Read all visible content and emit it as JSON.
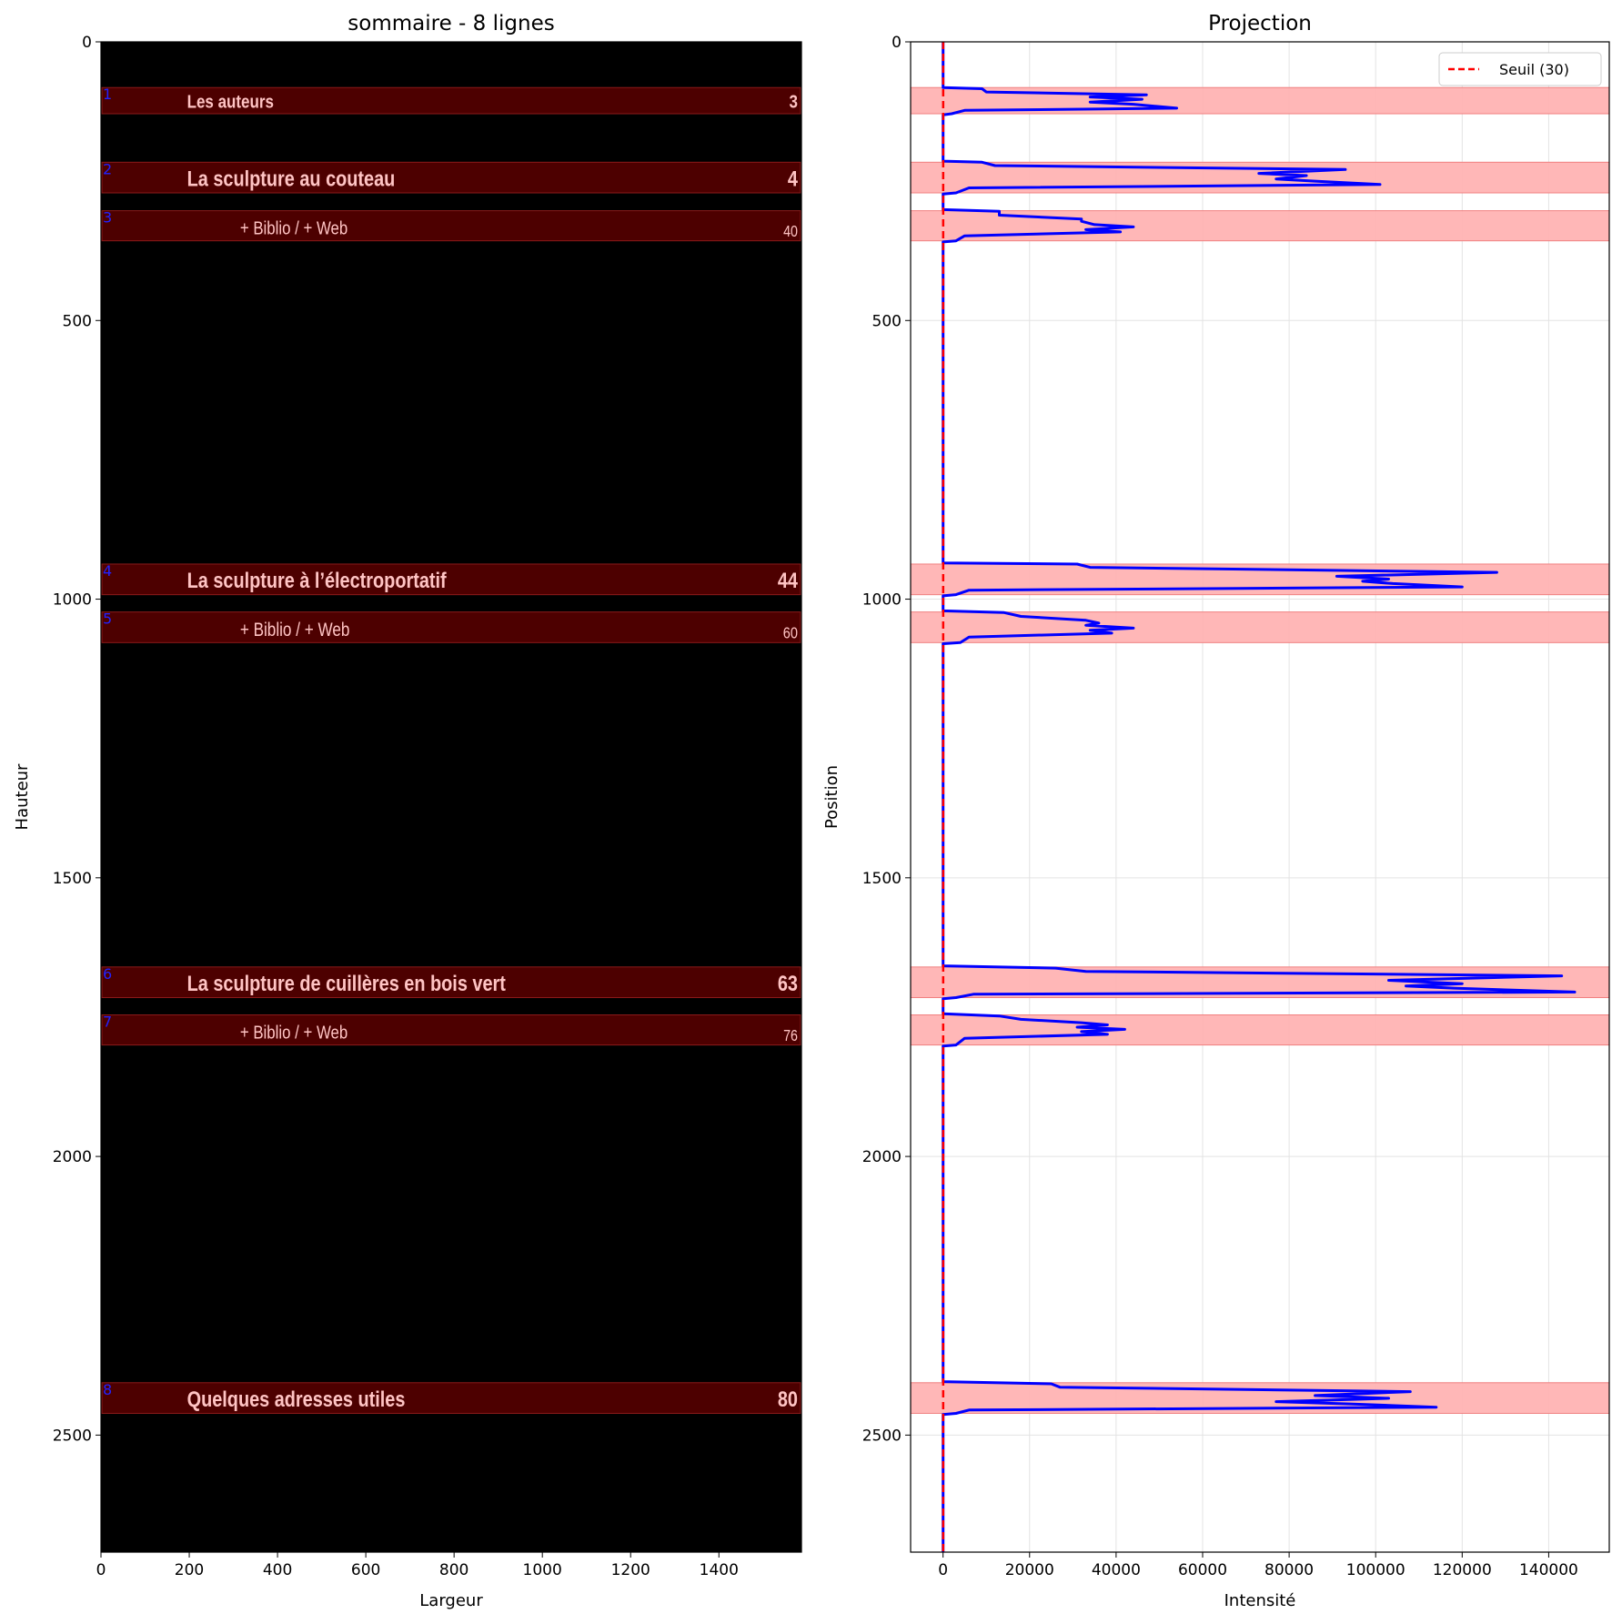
{
  "chart_data": [
    {
      "type": "image",
      "title": "sommaire - 8 lignes",
      "xlabel": "Largeur",
      "ylabel": "Hauteur",
      "xlim": [
        0,
        1587
      ],
      "ylim": [
        2710,
        0
      ],
      "xticks": [
        "0",
        "200",
        "400",
        "600",
        "800",
        "1000",
        "1200",
        "1400"
      ],
      "yticks": [
        "0",
        "500",
        "1000",
        "1500",
        "2000",
        "2500"
      ],
      "background": "#000000",
      "band_fill": "#4d0000",
      "band_stroke": "#8b1a1a",
      "text_color": "#ffc4c4",
      "number_color": "#2222ff",
      "lines": [
        {
          "num": "1",
          "y0": 82,
          "y1": 129,
          "title": "Les auteurs",
          "page": "3",
          "kind": "main"
        },
        {
          "num": "2",
          "y0": 216,
          "y1": 271,
          "title": "La sculpture au couteau",
          "page": "4",
          "kind": "main"
        },
        {
          "num": "3",
          "y0": 303,
          "y1": 357,
          "title": "+ Biblio / + Web",
          "page": "40",
          "kind": "sub"
        },
        {
          "num": "4",
          "y0": 937,
          "y1": 992,
          "title": "La sculpture à l’électroportatif",
          "page": "44",
          "kind": "main"
        },
        {
          "num": "5",
          "y0": 1023,
          "y1": 1078,
          "title": "+ Biblio / + Web",
          "page": "60",
          "kind": "sub"
        },
        {
          "num": "6",
          "y0": 1660,
          "y1": 1715,
          "title": "La sculpture de cuillères en bois vert",
          "page": "63",
          "kind": "main"
        },
        {
          "num": "7",
          "y0": 1746,
          "y1": 1800,
          "title": "+ Biblio / + Web",
          "page": "76",
          "kind": "sub"
        },
        {
          "num": "8",
          "y0": 2406,
          "y1": 2461,
          "title": "Quelques adresses utiles",
          "page": "80",
          "kind": "main"
        }
      ]
    },
    {
      "type": "line",
      "title": "Projection",
      "xlabel": "Intensité",
      "ylabel": "Position",
      "xlim": [
        -7500,
        154000
      ],
      "ylim": [
        2710,
        0
      ],
      "xticks": [
        0,
        20000,
        40000,
        60000,
        80000,
        100000,
        120000,
        140000
      ],
      "yticks": [
        0,
        500,
        1000,
        1500,
        2000,
        2500
      ],
      "grid": true,
      "legend": {
        "label": "Seuil (30)",
        "position": "top-right"
      },
      "threshold": 30,
      "threshold_color": "#ff0000",
      "line_color": "#0000ff",
      "band_color": "#ffb3b3",
      "bands": [
        [
          82,
          129
        ],
        [
          216,
          271
        ],
        [
          303,
          357
        ],
        [
          937,
          992
        ],
        [
          1023,
          1078
        ],
        [
          1660,
          1715
        ],
        [
          1746,
          1800
        ],
        [
          2406,
          2461
        ]
      ],
      "series": [
        {
          "points": [
            [
              0,
              0
            ],
            [
              0,
              82
            ],
            [
              9000,
              84
            ],
            [
              10000,
              90
            ],
            [
              47000,
              95
            ],
            [
              34000,
              99
            ],
            [
              46000,
              103
            ],
            [
              34000,
              108
            ],
            [
              44000,
              112
            ],
            [
              54000,
              119
            ],
            [
              5000,
              123
            ],
            [
              2000,
              129
            ],
            [
              0,
              131
            ],
            [
              0,
              214
            ],
            [
              9000,
              216
            ],
            [
              12000,
              222
            ],
            [
              93000,
              229
            ],
            [
              73000,
              236
            ],
            [
              84000,
              240
            ],
            [
              77000,
              246
            ],
            [
              86000,
              250
            ],
            [
              101000,
              256
            ],
            [
              6000,
              262
            ],
            [
              3000,
              271
            ],
            [
              0,
              273
            ],
            [
              0,
              301
            ],
            [
              13000,
              304
            ],
            [
              13000,
              311
            ],
            [
              32000,
              318
            ],
            [
              32000,
              322
            ],
            [
              35000,
              328
            ],
            [
              44000,
              332
            ],
            [
              33000,
              337
            ],
            [
              41000,
              341
            ],
            [
              5000,
              348
            ],
            [
              3000,
              357
            ],
            [
              0,
              359
            ],
            [
              0,
              935
            ],
            [
              31000,
              937
            ],
            [
              34000,
              943
            ],
            [
              128000,
              952
            ],
            [
              91000,
              959
            ],
            [
              103000,
              964
            ],
            [
              97000,
              968
            ],
            [
              104000,
              972
            ],
            [
              120000,
              978
            ],
            [
              6000,
              984
            ],
            [
              3000,
              992
            ],
            [
              0,
              994
            ],
            [
              0,
              1021
            ],
            [
              14000,
              1024
            ],
            [
              18000,
              1031
            ],
            [
              33000,
              1038
            ],
            [
              36000,
              1043
            ],
            [
              33000,
              1047
            ],
            [
              44000,
              1052
            ],
            [
              34000,
              1056
            ],
            [
              39000,
              1061
            ],
            [
              6000,
              1068
            ],
            [
              4000,
              1078
            ],
            [
              0,
              1080
            ],
            [
              0,
              1658
            ],
            [
              26000,
              1662
            ],
            [
              33000,
              1668
            ],
            [
              143000,
              1676
            ],
            [
              103000,
              1684
            ],
            [
              120000,
              1690
            ],
            [
              107000,
              1694
            ],
            [
              118000,
              1698
            ],
            [
              146000,
              1705
            ],
            [
              7000,
              1709
            ],
            [
              3000,
              1715
            ],
            [
              0,
              1717
            ],
            [
              0,
              1744
            ],
            [
              13000,
              1748
            ],
            [
              18000,
              1754
            ],
            [
              32000,
              1760
            ],
            [
              38000,
              1764
            ],
            [
              31000,
              1768
            ],
            [
              42000,
              1772
            ],
            [
              32000,
              1776
            ],
            [
              38000,
              1781
            ],
            [
              5000,
              1788
            ],
            [
              3000,
              1800
            ],
            [
              0,
              1802
            ],
            [
              0,
              2404
            ],
            [
              25000,
              2408
            ],
            [
              27000,
              2414
            ],
            [
              108000,
              2422
            ],
            [
              86000,
              2429
            ],
            [
              103000,
              2434
            ],
            [
              77000,
              2440
            ],
            [
              94000,
              2444
            ],
            [
              114000,
              2450
            ],
            [
              6000,
              2455
            ],
            [
              3000,
              2461
            ],
            [
              0,
              2463
            ],
            [
              0,
              2710
            ]
          ]
        }
      ]
    }
  ]
}
